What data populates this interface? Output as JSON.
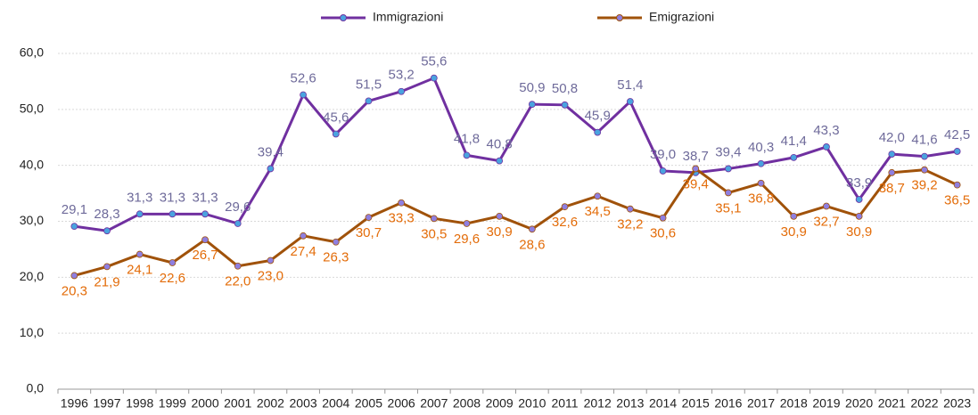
{
  "chart_data": {
    "type": "line",
    "categories": [
      "1996",
      "1997",
      "1998",
      "1999",
      "2000",
      "2001",
      "2002",
      "2003",
      "2004",
      "2005",
      "2006",
      "2007",
      "2008",
      "2009",
      "2010",
      "2011",
      "2012",
      "2013",
      "2014",
      "2015",
      "2016",
      "2017",
      "2018",
      "2019",
      "2020",
      "2021",
      "2022",
      "2023"
    ],
    "series": [
      {
        "name": "Immigrazioni",
        "color": "#7030a0",
        "marker_color": "#4aa3df",
        "label_color": "#6e6a9a",
        "values": [
          29.1,
          28.3,
          31.3,
          31.3,
          31.3,
          29.6,
          39.4,
          52.6,
          45.6,
          51.5,
          53.2,
          55.6,
          41.8,
          40.8,
          50.9,
          50.8,
          45.9,
          51.4,
          39.0,
          38.7,
          39.4,
          40.3,
          41.4,
          43.3,
          33.9,
          42.0,
          41.6,
          42.5
        ],
        "value_labels": [
          "29,1",
          "28,3",
          "31,3",
          "31,3",
          "31,3",
          "29,6",
          "39,4",
          "52,6",
          "45,6",
          "51,5",
          "53,2",
          "55,6",
          "41,8",
          "40,8",
          "50,9",
          "50,8",
          "45,9",
          "51,4",
          "39,0",
          "38,7",
          "39,4",
          "40,3",
          "41,4",
          "43,3",
          "33,9",
          "42,0",
          "41,6",
          "42,5"
        ]
      },
      {
        "name": "Emigrazioni",
        "color": "#a0520a",
        "marker_color": "#8f7fe0",
        "label_color": "#e36c09",
        "values": [
          20.3,
          21.9,
          24.1,
          22.6,
          26.7,
          22.0,
          23.0,
          27.4,
          26.3,
          30.7,
          33.3,
          30.5,
          29.6,
          30.9,
          28.6,
          32.6,
          34.5,
          32.2,
          30.6,
          39.4,
          35.1,
          36.8,
          30.9,
          32.7,
          30.9,
          38.7,
          39.2,
          36.5
        ],
        "value_labels": [
          "20,3",
          "21,9",
          "24,1",
          "22,6",
          "26,7",
          "22,0",
          "23,0",
          "27,4",
          "26,3",
          "30,7",
          "33,3",
          "30,5",
          "29,6",
          "30,9",
          "28,6",
          "32,6",
          "34,5",
          "32,2",
          "30,6",
          "39,4",
          "35,1",
          "36,8",
          "30,9",
          "32,7",
          "30,9",
          "38,7",
          "39,2",
          "36,5"
        ]
      }
    ],
    "ylim": [
      0,
      60
    ],
    "yticks": [
      {
        "value": 0,
        "label": "0,0"
      },
      {
        "value": 10,
        "label": "10,0"
      },
      {
        "value": 20,
        "label": "20,0"
      },
      {
        "value": 30,
        "label": "30,0"
      },
      {
        "value": 40,
        "label": "40,0"
      },
      {
        "value": 50,
        "label": "50,0"
      },
      {
        "value": 60,
        "label": "60,0"
      }
    ],
    "grid": true,
    "legend": "top"
  }
}
